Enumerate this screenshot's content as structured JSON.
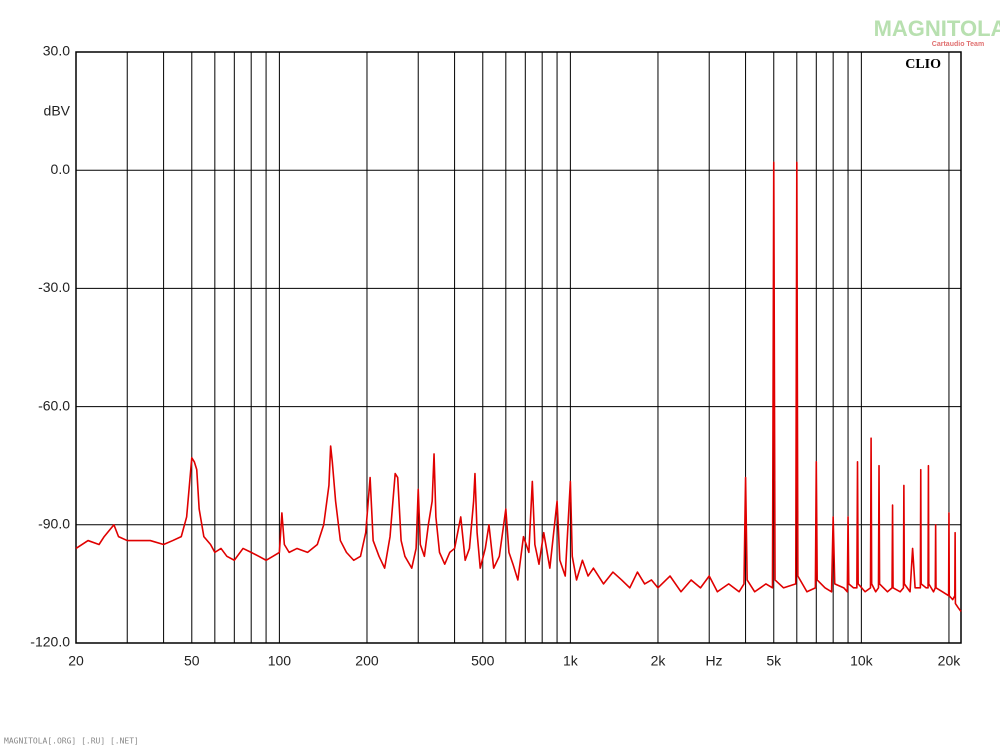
{
  "chart_data": {
    "type": "line",
    "brand": "CLIO",
    "watermark": "MAGNITOLA",
    "watermark_sub": "Cartaudio Team",
    "footer": "MAGNITOLA[.ORG] [.RU] [.NET]",
    "x_label": "Hz",
    "y_label": "dBV",
    "xscale": "log",
    "grid": true,
    "xlim": [
      20,
      22000
    ],
    "ylim": [
      -120,
      30
    ],
    "xticks": [
      20,
      50,
      100,
      200,
      500,
      {
        "value": 1000,
        "label": "1k"
      },
      {
        "value": 2000,
        "label": "2k"
      },
      {
        "value": 5000,
        "label": "5k"
      },
      {
        "value": 10000,
        "label": "10k"
      },
      {
        "value": 20000,
        "label": "20k"
      }
    ],
    "xminor": [
      30,
      40,
      60,
      70,
      80,
      90,
      300,
      400,
      600,
      700,
      800,
      900,
      3000,
      4000,
      6000,
      7000,
      8000,
      9000
    ],
    "yticks": [
      {
        "value": 30,
        "label": "30.0"
      },
      {
        "value": 0,
        "label": "0.0"
      },
      {
        "value": -30,
        "label": "-30.0"
      },
      {
        "value": -60,
        "label": "-60.0"
      },
      {
        "value": -90,
        "label": "-90.0"
      },
      {
        "value": -120,
        "label": "-120.0"
      }
    ],
    "x": [
      20,
      22,
      24,
      25,
      27,
      28,
      30,
      33,
      36,
      40,
      43,
      46,
      48,
      50,
      51,
      52,
      53,
      55,
      58,
      60,
      63,
      66,
      70,
      75,
      80,
      85,
      90,
      95,
      100,
      102,
      104,
      108,
      115,
      125,
      135,
      142,
      148,
      150,
      152,
      156,
      162,
      170,
      180,
      190,
      198,
      205,
      210,
      220,
      230,
      240,
      250,
      255,
      262,
      270,
      285,
      295,
      300,
      305,
      315,
      325,
      335,
      340,
      345,
      355,
      370,
      385,
      400,
      420,
      435,
      450,
      465,
      470,
      478,
      490,
      510,
      525,
      545,
      570,
      600,
      615,
      635,
      660,
      690,
      720,
      740,
      755,
      780,
      810,
      850,
      900,
      920,
      960,
      1000,
      1015,
      1050,
      1100,
      1150,
      1200,
      1300,
      1400,
      1500,
      1600,
      1700,
      1800,
      1900,
      2000,
      2200,
      2400,
      2600,
      2800,
      3000,
      3200,
      3500,
      3800,
      3950,
      4000,
      4050,
      4300,
      4700,
      4950,
      5000,
      5050,
      5400,
      5950,
      6000,
      6050,
      6500,
      6950,
      7000,
      7050,
      7500,
      7900,
      8000,
      8100,
      8700,
      8950,
      9000,
      9050,
      9400,
      9650,
      9700,
      9750,
      10300,
      10750,
      10800,
      10850,
      11200,
      11450,
      11500,
      11550,
      12300,
      12750,
      12800,
      12850,
      13600,
      13950,
      14000,
      14050,
      14700,
      15000,
      15300,
      15950,
      16000,
      16050,
      16700,
      16950,
      17000,
      17050,
      17700,
      17950,
      18000,
      18050,
      19000,
      19950,
      20000,
      20050,
      20600,
      20950,
      21000,
      21050,
      21500,
      22000
    ],
    "series": [
      {
        "color": "#e00000",
        "values": [
          -96,
          -94,
          -95,
          -93,
          -90,
          -93,
          -94,
          -94,
          -94,
          -95,
          -94,
          -93,
          -88,
          -73,
          -74,
          -76,
          -86,
          -93,
          -95,
          -97,
          -96,
          -98,
          -99,
          -96,
          -97,
          -98,
          -99,
          -98,
          -97,
          -87,
          -95,
          -97,
          -96,
          -97,
          -95,
          -90,
          -80,
          -70,
          -74,
          -84,
          -94,
          -97,
          -99,
          -98,
          -92,
          -78,
          -94,
          -98,
          -101,
          -93,
          -77,
          -78,
          -94,
          -98,
          -101,
          -96,
          -81,
          -95,
          -98,
          -90,
          -84,
          -72,
          -88,
          -97,
          -100,
          -97,
          -96,
          -88,
          -99,
          -96,
          -84,
          -77,
          -92,
          -101,
          -96,
          -90,
          -101,
          -98,
          -86,
          -97,
          -100,
          -104,
          -93,
          -97,
          -79,
          -95,
          -100,
          -92,
          -101,
          -84,
          -99,
          -103,
          -79,
          -98,
          -104,
          -99,
          -103,
          -101,
          -105,
          -102,
          -104,
          -106,
          -102,
          -105,
          -104,
          -106,
          -103,
          -107,
          -104,
          -106,
          -103,
          -107,
          -105,
          -107,
          -105,
          -78,
          -104,
          -107,
          -105,
          -106,
          2,
          -104,
          -106,
          -105,
          2,
          -103,
          -107,
          -106,
          -74,
          -104,
          -106,
          -107,
          -88,
          -105,
          -106,
          -107,
          -88,
          -105,
          -106,
          -106,
          -74,
          -105,
          -107,
          -106,
          -68,
          -105,
          -107,
          -106,
          -75,
          -105,
          -107,
          -106,
          -85,
          -106,
          -107,
          -106,
          -80,
          -105,
          -107,
          -96,
          -106,
          -106,
          -76,
          -105,
          -106,
          -106,
          -75,
          -105,
          -107,
          -106,
          -90,
          -106,
          -107,
          -108,
          -87,
          -108,
          -109,
          -108,
          -92,
          -110,
          -111,
          -112
        ]
      }
    ]
  }
}
